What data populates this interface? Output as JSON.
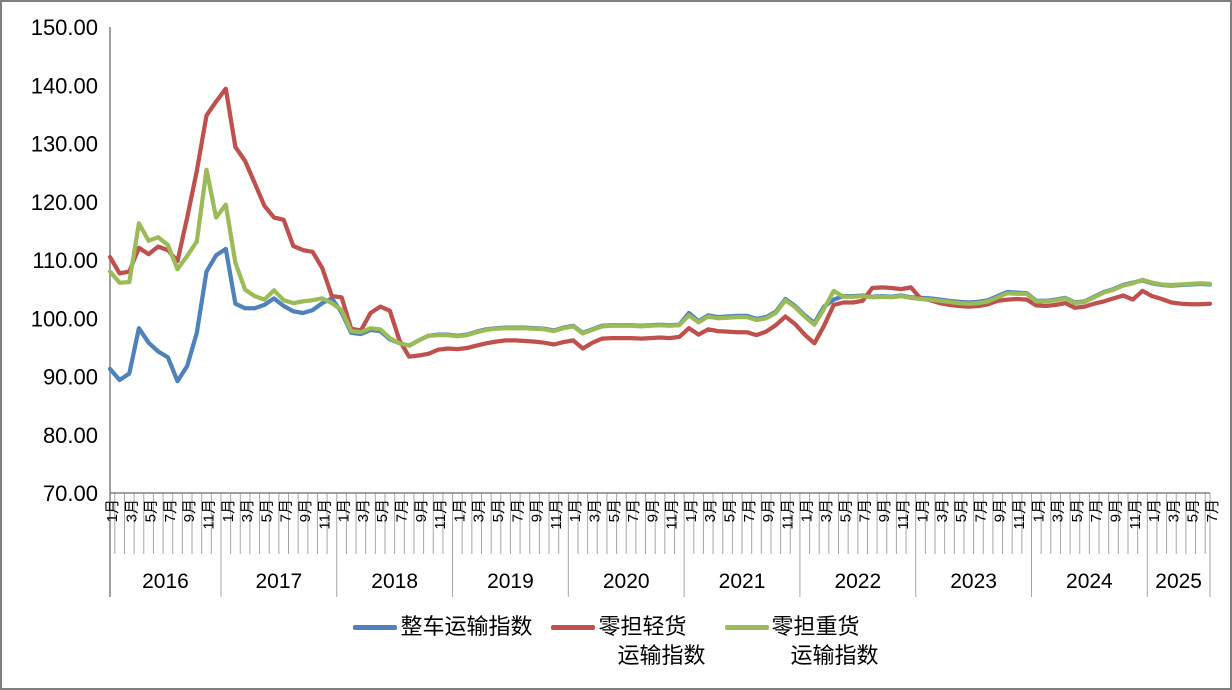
{
  "frame": {
    "background": "#ffffff",
    "border_color": "#808080"
  },
  "colors": {
    "axis": "#808080",
    "tick": "#a6a6a6",
    "text": "#000000"
  },
  "legend": {
    "items": [
      {
        "lines": [
          "整车运输指数"
        ],
        "color": "#4F81BD"
      },
      {
        "lines": [
          "零担轻货",
          "运输指数"
        ],
        "color": "#C0504D"
      },
      {
        "lines": [
          "零担重货",
          "运输指数"
        ],
        "color": "#9BBB59"
      }
    ]
  },
  "chart_data": {
    "type": "line",
    "title": "",
    "grid": false,
    "legend_position": "bottom",
    "y_axis": {
      "min": 70,
      "max": 150,
      "step": 10,
      "labels": [
        "150.00",
        "140.00",
        "130.00",
        "120.00",
        "110.00",
        "100.00",
        "90.00",
        "80.00",
        "70.00"
      ]
    },
    "x_axis": {
      "unit": "month",
      "years": [
        {
          "label": "2016",
          "months": 12,
          "month_labels": [
            "1月",
            "3月",
            "5月",
            "7月",
            "9月",
            "11月"
          ]
        },
        {
          "label": "2017",
          "months": 12,
          "month_labels": [
            "1月",
            "3月",
            "5月",
            "7月",
            "9月",
            "11月"
          ]
        },
        {
          "label": "2018",
          "months": 12,
          "month_labels": [
            "1月",
            "3月",
            "5月",
            "7月",
            "9月",
            "11月"
          ]
        },
        {
          "label": "2019",
          "months": 12,
          "month_labels": [
            "1月",
            "3月",
            "5月",
            "7月",
            "9月",
            "11月"
          ]
        },
        {
          "label": "2020",
          "months": 12,
          "month_labels": [
            "1月",
            "3月",
            "5月",
            "7月",
            "9月",
            "11月"
          ]
        },
        {
          "label": "2021",
          "months": 12,
          "month_labels": [
            "1月",
            "3月",
            "5月",
            "7月",
            "9月",
            "11月"
          ]
        },
        {
          "label": "2022",
          "months": 12,
          "month_labels": [
            "1月",
            "3月",
            "5月",
            "7月",
            "9月",
            "11月"
          ]
        },
        {
          "label": "2023",
          "months": 12,
          "month_labels": [
            "1月",
            "3月",
            "5月",
            "7月",
            "9月",
            "11月"
          ]
        },
        {
          "label": "2024",
          "months": 12,
          "month_labels": [
            "1月",
            "3月",
            "5月",
            "7月",
            "9月",
            "11月"
          ]
        },
        {
          "label": "2025",
          "months": 7,
          "month_labels": [
            "1月",
            "3月",
            "5月",
            "7月"
          ]
        }
      ]
    },
    "series": [
      {
        "id": "ftl",
        "name": "整车运输指数",
        "color": "#4F81BD",
        "values": [
          91.3,
          89.4,
          90.5,
          98.3,
          95.8,
          94.3,
          93.3,
          89.2,
          91.8,
          97.5,
          108.0,
          110.8,
          111.9,
          102.5,
          101.7,
          101.7,
          102.3,
          103.4,
          102.1,
          101.2,
          100.9,
          101.4,
          102.6,
          103.4,
          101.0,
          97.5,
          97.3,
          98.0,
          97.8,
          96.4,
          95.7,
          95.3,
          96.2,
          97.0,
          97.2,
          97.2,
          97.0,
          97.2,
          97.7,
          98.1,
          98.3,
          98.4,
          98.4,
          98.4,
          98.3,
          98.2,
          97.9,
          98.4,
          98.7,
          97.5,
          98.1,
          98.7,
          98.8,
          98.8,
          98.8,
          98.7,
          98.8,
          98.9,
          98.8,
          98.9,
          100.9,
          99.5,
          100.5,
          100.2,
          100.3,
          100.4,
          100.4,
          99.9,
          100.2,
          101.1,
          103.3,
          102.1,
          100.5,
          99.2,
          102.0,
          103.2,
          103.8,
          103.8,
          103.9,
          103.7,
          103.8,
          103.7,
          103.9,
          103.6,
          103.5,
          103.4,
          103.2,
          103.0,
          102.8,
          102.7,
          102.8,
          103.1,
          103.8,
          104.5,
          104.4,
          104.3,
          103.0,
          103.0,
          103.2,
          103.5,
          102.7,
          102.9,
          103.7,
          104.5,
          105.0,
          105.7,
          106.1,
          106.5,
          106.0,
          105.7,
          105.6,
          105.7,
          105.8,
          105.9,
          105.8
        ]
      },
      {
        "id": "ltl-light",
        "name": "零担轻货运输指数",
        "color": "#C0504D",
        "values": [
          110.5,
          107.7,
          108.0,
          112.1,
          111.0,
          112.3,
          111.7,
          109.8,
          117.3,
          125.3,
          134.8,
          137.2,
          139.4,
          129.4,
          127.0,
          123.2,
          119.3,
          117.3,
          116.9,
          112.4,
          111.7,
          111.4,
          108.6,
          103.8,
          103.6,
          98.2,
          97.9,
          100.9,
          102.0,
          101.3,
          96.2,
          93.4,
          93.6,
          93.9,
          94.6,
          94.8,
          94.7,
          94.9,
          95.3,
          95.7,
          96.0,
          96.2,
          96.2,
          96.1,
          96.0,
          95.8,
          95.5,
          95.9,
          96.2,
          94.8,
          95.8,
          96.5,
          96.6,
          96.6,
          96.6,
          96.5,
          96.6,
          96.7,
          96.6,
          96.8,
          98.3,
          97.2,
          98.1,
          97.8,
          97.7,
          97.6,
          97.6,
          97.1,
          97.7,
          98.8,
          100.3,
          99.0,
          97.2,
          95.7,
          98.7,
          102.3,
          102.7,
          102.7,
          103.0,
          105.2,
          105.3,
          105.2,
          105.0,
          105.3,
          103.4,
          103.1,
          102.6,
          102.3,
          102.1,
          102.0,
          102.1,
          102.4,
          103.0,
          103.2,
          103.3,
          103.2,
          102.2,
          102.1,
          102.3,
          102.6,
          101.8,
          102.0,
          102.5,
          102.9,
          103.4,
          103.9,
          103.2,
          104.7,
          103.8,
          103.3,
          102.7,
          102.5,
          102.4,
          102.4,
          102.5
        ]
      },
      {
        "id": "ltl-heavy",
        "name": "零担重货运输指数",
        "color": "#9BBB59",
        "values": [
          108.0,
          106.1,
          106.2,
          116.3,
          113.3,
          113.9,
          112.6,
          108.4,
          110.7,
          113.2,
          125.5,
          117.3,
          119.5,
          109.5,
          104.9,
          103.8,
          103.2,
          104.8,
          103.1,
          102.6,
          102.9,
          103.1,
          103.4,
          102.6,
          101.4,
          97.8,
          97.6,
          98.3,
          98.1,
          96.6,
          95.7,
          95.3,
          96.2,
          97.0,
          97.1,
          97.1,
          96.9,
          97.1,
          97.6,
          98.0,
          98.2,
          98.3,
          98.3,
          98.3,
          98.2,
          98.1,
          97.8,
          98.3,
          98.6,
          97.4,
          98.0,
          98.6,
          98.7,
          98.7,
          98.7,
          98.6,
          98.7,
          98.8,
          98.7,
          98.8,
          100.5,
          99.3,
          100.3,
          100.0,
          100.1,
          100.2,
          100.2,
          99.7,
          100.0,
          100.9,
          103.1,
          101.9,
          100.3,
          98.9,
          101.6,
          104.7,
          103.7,
          103.7,
          103.8,
          103.6,
          103.7,
          103.6,
          103.8,
          103.5,
          103.3,
          103.2,
          103.0,
          102.8,
          102.6,
          102.5,
          102.6,
          102.9,
          103.6,
          104.3,
          104.2,
          104.2,
          102.9,
          102.9,
          103.1,
          103.4,
          102.6,
          102.8,
          103.6,
          104.4,
          104.9,
          105.6,
          106.0,
          106.6,
          106.1,
          105.8,
          105.7,
          105.8,
          105.9,
          106.0,
          105.9
        ]
      }
    ]
  }
}
